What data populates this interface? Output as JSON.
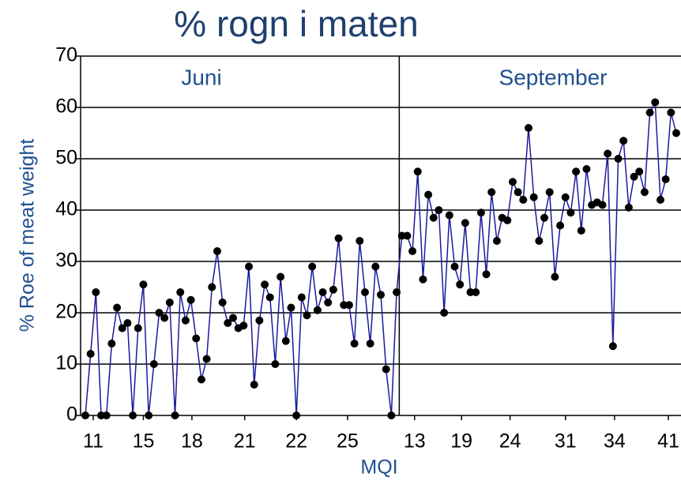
{
  "chart_data": {
    "type": "line",
    "title": "% rogn i maten",
    "y_label": "% Roe of meat weight",
    "x_label": "MQI",
    "annotations": [
      "Juni",
      "September"
    ],
    "divider_x": 59.5,
    "line_color": "#1a1a9c",
    "marker_color": "#000000",
    "grid": true,
    "xlim": [
      -0.9,
      112.9
    ],
    "ylim": [
      0,
      70
    ],
    "yticks": [
      0,
      10,
      20,
      30,
      40,
      50,
      60,
      70
    ],
    "xticks": [
      {
        "value": 1.5,
        "label": "11"
      },
      {
        "value": 11,
        "label": "15"
      },
      {
        "value": 20.2,
        "label": "18"
      },
      {
        "value": 30.2,
        "label": "21"
      },
      {
        "value": 40,
        "label": "22"
      },
      {
        "value": 49.7,
        "label": "25"
      },
      {
        "value": 62.4,
        "label": "13"
      },
      {
        "value": 71.3,
        "label": "19"
      },
      {
        "value": 80.5,
        "label": "24"
      },
      {
        "value": 91,
        "label": "31"
      },
      {
        "value": 100.3,
        "label": "34"
      },
      {
        "value": 110.5,
        "label": "41"
      }
    ],
    "values": [
      0,
      12,
      24,
      0,
      0,
      14,
      21,
      17,
      18,
      0,
      17,
      25.5,
      0,
      10,
      20,
      19,
      22,
      0,
      24,
      18.5,
      22.5,
      15,
      7,
      11,
      25,
      32,
      22,
      18,
      19,
      17,
      17.5,
      29,
      6,
      18.5,
      25.5,
      23,
      10,
      27,
      14.5,
      21,
      0,
      23,
      19.5,
      29,
      20.5,
      24,
      22,
      24.5,
      34.5,
      21.5,
      21.5,
      14,
      34,
      24,
      14,
      29,
      23.5,
      9,
      0,
      24,
      35,
      35,
      32,
      47.5,
      26.5,
      43,
      38.5,
      40,
      20,
      39,
      29,
      25.5,
      37.5,
      24,
      24,
      39.5,
      27.5,
      43.5,
      34,
      38.5,
      38,
      45.5,
      43.5,
      42,
      56,
      42.5,
      34,
      38.5,
      43.5,
      27,
      37,
      42.5,
      39.5,
      47.5,
      36,
      48,
      41,
      41.5,
      41,
      51,
      13.5,
      50,
      53.5,
      40.5,
      46.5,
      47.5,
      43.5,
      59,
      61,
      42,
      46,
      59,
      55
    ]
  }
}
